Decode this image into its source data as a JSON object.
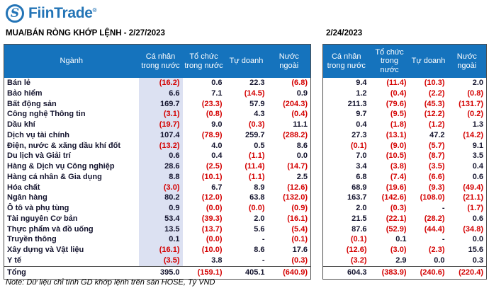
{
  "logo": {
    "brand": "FiinTrade",
    "registered": "®",
    "icon": "fiin-s-monogram",
    "monogram": "S"
  },
  "colors": {
    "brand": "#2374b6",
    "header_bg": "#1573bd",
    "highlight": "#dce1f2",
    "negative": "#d40000",
    "text": "#14142e"
  },
  "sectors": [
    "Bán lẻ",
    "Bảo hiểm",
    "Bất động sản",
    "Công nghệ Thông tin",
    "Dầu khí",
    "Dịch vụ tài chính",
    "Điện, nước & xăng dầu khí đốt",
    "Du lịch và Giải trí",
    "Hàng & Dịch vụ Công nghiệp",
    "Hàng cá nhân & Gia dụng",
    "Hóa chất",
    "Ngân hàng",
    "Ô tô và phụ tùng",
    "Tài nguyên Cơ bản",
    "Thực phẩm và đồ uống",
    "Truyền thông",
    "Xây dựng và Vật liệu",
    "Y tế"
  ],
  "total_label": "Tổng",
  "left_table": {
    "title": "MUA/BÁN RÒNG KHỚP LỆNH - 2/27/2023",
    "columns": [
      "Ngành",
      "Cá nhân trong nước",
      "Tổ chức trong nước",
      "Tự doanh",
      "Nước ngoài"
    ],
    "rows": [
      [
        "(16.2)",
        "0.6",
        "22.3",
        "(6.8)"
      ],
      [
        "6.6",
        "7.1",
        "(14.5)",
        "0.9"
      ],
      [
        "169.7",
        "(23.3)",
        "57.9",
        "(204.3)"
      ],
      [
        "(3.1)",
        "(0.8)",
        "4.3",
        "(0.4)"
      ],
      [
        "(19.7)",
        "9.0",
        "(0.3)",
        "11.1"
      ],
      [
        "107.4",
        "(78.9)",
        "259.7",
        "(288.2)"
      ],
      [
        "(13.2)",
        "4.0",
        "0.5",
        "8.6"
      ],
      [
        "0.6",
        "0.4",
        "(1.1)",
        "0.0"
      ],
      [
        "28.6",
        "(2.5)",
        "(11.4)",
        "(14.7)"
      ],
      [
        "8.8",
        "(10.1)",
        "(1.1)",
        "2.5"
      ],
      [
        "(3.0)",
        "6.7",
        "8.9",
        "(12.6)"
      ],
      [
        "80.2",
        "(12.0)",
        "63.8",
        "(132.0)"
      ],
      [
        "0.9",
        "(0.0)",
        "(0.0)",
        "(0.9)"
      ],
      [
        "53.4",
        "(39.3)",
        "2.0",
        "(16.1)"
      ],
      [
        "13.5",
        "(13.7)",
        "5.6",
        "(5.4)"
      ],
      [
        "0.1",
        "(0.0)",
        "-",
        "(0.1)"
      ],
      [
        "(16.1)",
        "(10.0)",
        "8.6",
        "17.6"
      ],
      [
        "(3.5)",
        "3.8",
        "-",
        "(0.3)"
      ]
    ],
    "total": [
      "395.0",
      "(159.1)",
      "405.1",
      "(640.9)"
    ]
  },
  "right_table": {
    "title": "2/24/2023",
    "columns": [
      "Cá nhân trong nước",
      "Tổ chức trong nước",
      "Tự doanh",
      "Nước ngoài"
    ],
    "rows": [
      [
        "9.4",
        "(11.4)",
        "(10.3)",
        "2.0"
      ],
      [
        "1.2",
        "(0.4)",
        "(2.2)",
        "(0.8)"
      ],
      [
        "211.3",
        "(79.6)",
        "(45.3)",
        "(131.7)"
      ],
      [
        "9.7",
        "(9.5)",
        "(12.2)",
        "(0.2)"
      ],
      [
        "0.4",
        "(1.8)",
        "(1.2)",
        "1.3"
      ],
      [
        "27.3",
        "(13.1)",
        "47.2",
        "(14.2)"
      ],
      [
        "(0.1)",
        "(9.0)",
        "(5.7)",
        "9.1"
      ],
      [
        "7.0",
        "(10.5)",
        "(8.7)",
        "3.5"
      ],
      [
        "3.4",
        "(3.8)",
        "(3.5)",
        "0.4"
      ],
      [
        "6.8",
        "(7.4)",
        "(6.6)",
        "0.6"
      ],
      [
        "68.9",
        "(19.6)",
        "(9.3)",
        "(49.4)"
      ],
      [
        "163.7",
        "(142.6)",
        "(108.0)",
        "(21.1)"
      ],
      [
        "2.0",
        "(0.3)",
        "-",
        "(1.7)"
      ],
      [
        "21.5",
        "(22.1)",
        "(28.2)",
        "0.6"
      ],
      [
        "87.6",
        "(52.9)",
        "(44.4)",
        "(34.8)"
      ],
      [
        "(0.1)",
        "0.1",
        "-",
        "0.0"
      ],
      [
        "(12.6)",
        "(3.0)",
        "(2.3)",
        "15.6"
      ],
      [
        "(3.2)",
        "2.9",
        "0.0",
        "0.3"
      ]
    ],
    "total": [
      "604.3",
      "(383.9)",
      "(240.6)",
      "(220.4)"
    ]
  },
  "note": "Note: Dữ liệu chỉ tính GD khớp lệnh trên sàn HOSE, Tỷ VND"
}
